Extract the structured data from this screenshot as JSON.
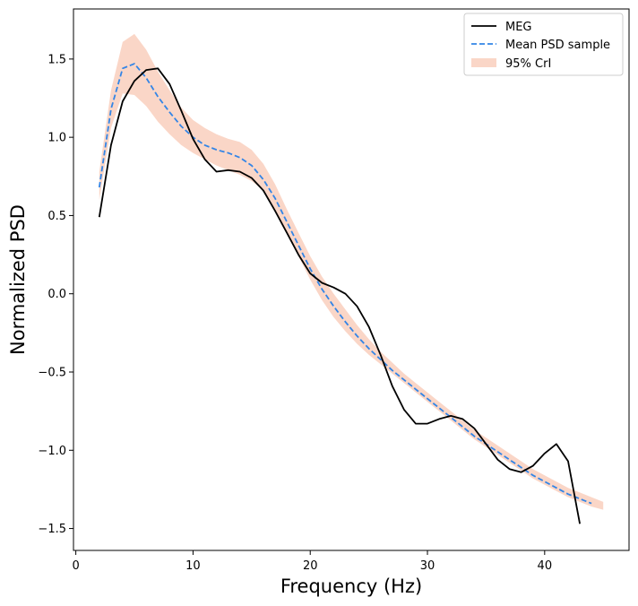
{
  "chart_data": {
    "type": "line",
    "title": "",
    "xlabel": "Frequency (Hz)",
    "ylabel": "Normalized PSD",
    "xlim": [
      -0.2,
      47.2
    ],
    "ylim": [
      -1.64,
      1.82
    ],
    "xticks": [
      0,
      10,
      20,
      30,
      40
    ],
    "xtick_labels": [
      "0",
      "10",
      "20",
      "30",
      "40"
    ],
    "yticks": [
      -1.5,
      -1.0,
      -0.5,
      0.0,
      0.5,
      1.0,
      1.5
    ],
    "ytick_labels": [
      "−1.5",
      "−1.0",
      "−0.5",
      "0.0",
      "0.5",
      "1.0",
      "1.5"
    ],
    "grid": false,
    "legend_position": "upper right",
    "series": [
      {
        "name": "MEG",
        "style": "solid",
        "color": "#000000",
        "x": [
          2,
          3,
          4,
          5,
          6,
          7,
          8,
          9,
          10,
          11,
          12,
          13,
          14,
          15,
          16,
          17,
          18,
          19,
          20,
          21,
          22,
          23,
          24,
          25,
          26,
          27,
          28,
          29,
          30,
          31,
          32,
          33,
          34,
          35,
          36,
          37,
          38,
          39,
          40,
          41,
          42,
          43,
          44,
          45
        ],
        "y": [
          0.49,
          0.95,
          1.23,
          1.36,
          1.43,
          1.44,
          1.34,
          1.17,
          0.99,
          0.86,
          0.78,
          0.79,
          0.78,
          0.74,
          0.66,
          0.53,
          0.39,
          0.25,
          0.13,
          0.07,
          0.04,
          0.0,
          -0.08,
          -0.21,
          -0.39,
          -0.59,
          -0.74,
          -0.83,
          -0.83,
          -0.8,
          -0.78,
          -0.8,
          -0.86,
          -0.96,
          -1.06,
          -1.12,
          -1.14,
          -1.1,
          -1.02,
          -0.96,
          -1.07,
          -1.47,
          null,
          null
        ]
      },
      {
        "name": "Mean PSD sample",
        "style": "dashed",
        "color": "#3385e6",
        "x": [
          2,
          3,
          4,
          5,
          6,
          7,
          8,
          9,
          10,
          11,
          12,
          13,
          14,
          15,
          16,
          17,
          18,
          19,
          20,
          21,
          22,
          23,
          24,
          25,
          26,
          27,
          28,
          29,
          30,
          31,
          32,
          33,
          34,
          35,
          36,
          37,
          38,
          39,
          40,
          41,
          42,
          43,
          44,
          45
        ],
        "y": [
          0.68,
          1.18,
          1.44,
          1.47,
          1.38,
          1.26,
          1.16,
          1.07,
          1.0,
          0.95,
          0.92,
          0.9,
          0.87,
          0.82,
          0.73,
          0.61,
          0.46,
          0.31,
          0.16,
          0.03,
          -0.08,
          -0.18,
          -0.27,
          -0.35,
          -0.42,
          -0.49,
          -0.55,
          -0.61,
          -0.67,
          -0.73,
          -0.79,
          -0.85,
          -0.91,
          -0.96,
          -1.01,
          -1.06,
          -1.11,
          -1.16,
          -1.2,
          -1.24,
          -1.28,
          -1.31,
          -1.34,
          null
        ]
      }
    ],
    "band": {
      "name": "95% CrI",
      "color": "#f4a582",
      "opacity": 0.45,
      "x": [
        2,
        3,
        4,
        5,
        6,
        7,
        8,
        9,
        10,
        11,
        12,
        13,
        14,
        15,
        16,
        17,
        18,
        19,
        20,
        21,
        22,
        23,
        24,
        25,
        26,
        27,
        28,
        29,
        30,
        31,
        32,
        33,
        34,
        35,
        36,
        37,
        38,
        39,
        40,
        41,
        42,
        43,
        44,
        45
      ],
      "lower": [
        0.6,
        1.06,
        1.28,
        1.27,
        1.2,
        1.1,
        1.02,
        0.95,
        0.9,
        0.86,
        0.82,
        0.79,
        0.76,
        0.72,
        0.66,
        0.53,
        0.39,
        0.24,
        0.09,
        -0.04,
        -0.15,
        -0.24,
        -0.32,
        -0.39,
        -0.45,
        -0.51,
        -0.57,
        -0.63,
        -0.69,
        -0.75,
        -0.81,
        -0.87,
        -0.93,
        -0.98,
        -1.03,
        -1.08,
        -1.13,
        -1.18,
        -1.22,
        -1.26,
        -1.3,
        -1.33,
        -1.36,
        -1.38
      ],
      "upper": [
        0.78,
        1.3,
        1.61,
        1.66,
        1.56,
        1.42,
        1.3,
        1.19,
        1.11,
        1.06,
        1.02,
        0.99,
        0.97,
        0.92,
        0.83,
        0.7,
        0.54,
        0.39,
        0.24,
        0.11,
        0.0,
        -0.1,
        -0.2,
        -0.29,
        -0.37,
        -0.44,
        -0.51,
        -0.57,
        -0.63,
        -0.69,
        -0.75,
        -0.81,
        -0.87,
        -0.92,
        -0.97,
        -1.02,
        -1.07,
        -1.12,
        -1.16,
        -1.2,
        -1.24,
        -1.27,
        -1.3,
        -1.33
      ]
    }
  }
}
